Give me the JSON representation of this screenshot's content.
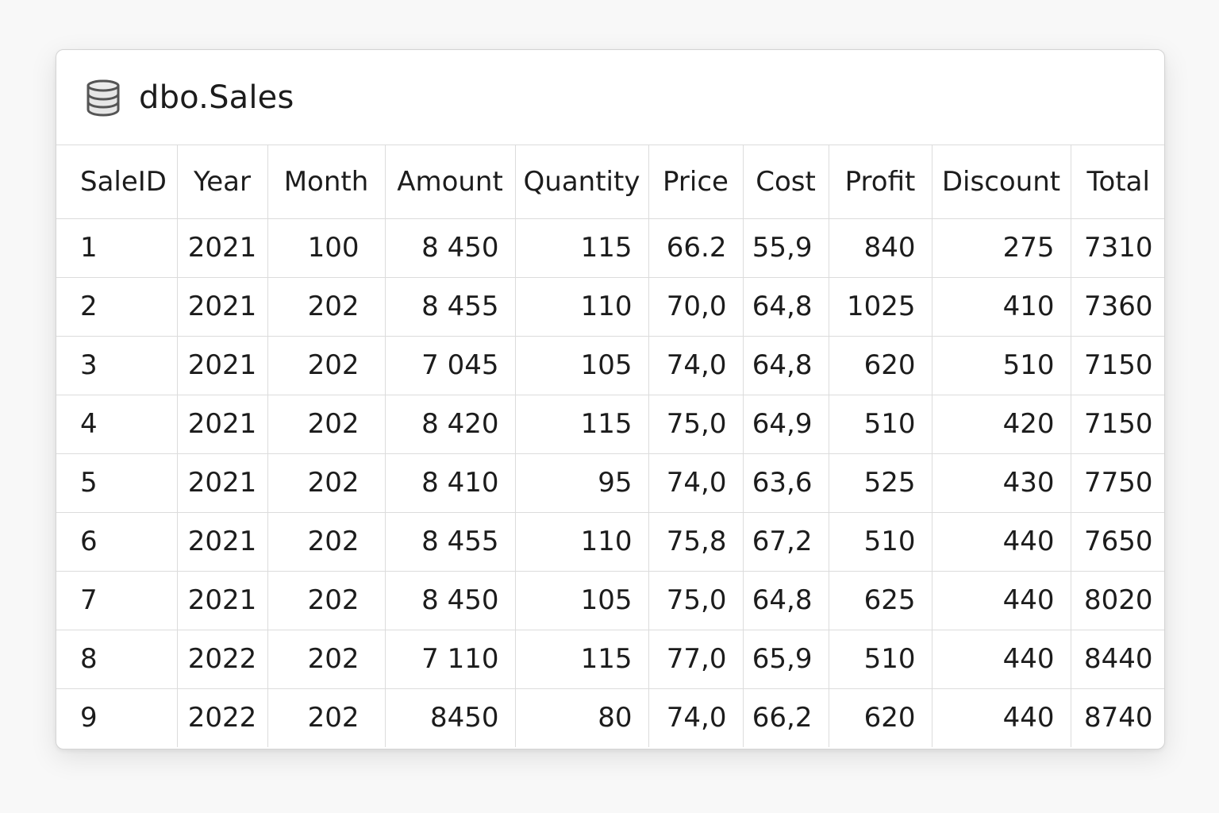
{
  "table_name": "dbo.Sales",
  "icon": "database-icon",
  "columns": [
    "SaleID",
    "Year",
    "Month",
    "Amount",
    "Quantity",
    "Price",
    "Cost",
    "Profit",
    "Discount",
    "Total"
  ],
  "rows": [
    [
      "1",
      "2021",
      "100",
      "8 450",
      "115",
      "66.2",
      "55,9",
      "840",
      "275",
      "7310"
    ],
    [
      "2",
      "2021",
      "202",
      "8 455",
      "110",
      "70,0",
      "64,8",
      "1025",
      "410",
      "7360"
    ],
    [
      "3",
      "2021",
      "202",
      "7 045",
      "105",
      "74,0",
      "64,8",
      "620",
      "510",
      "7150"
    ],
    [
      "4",
      "2021",
      "202",
      "8 420",
      "115",
      "75,0",
      "64,9",
      "510",
      "420",
      "7150"
    ],
    [
      "5",
      "2021",
      "202",
      "8 410",
      "95",
      "74,0",
      "63,6",
      "525",
      "430",
      "7750"
    ],
    [
      "6",
      "2021",
      "202",
      "8 455",
      "110",
      "75,8",
      "67,2",
      "510",
      "440",
      "7650"
    ],
    [
      "7",
      "2021",
      "202",
      "8 450",
      "105",
      "75,0",
      "64,8",
      "625",
      "440",
      "8020"
    ],
    [
      "8",
      "2022",
      "202",
      "7 110",
      "115",
      "77,0",
      "65,9",
      "510",
      "440",
      "8440"
    ],
    [
      "9",
      "2022",
      "202",
      "8450",
      "80",
      "74,0",
      "66,2",
      "620",
      "440",
      "8740"
    ]
  ]
}
